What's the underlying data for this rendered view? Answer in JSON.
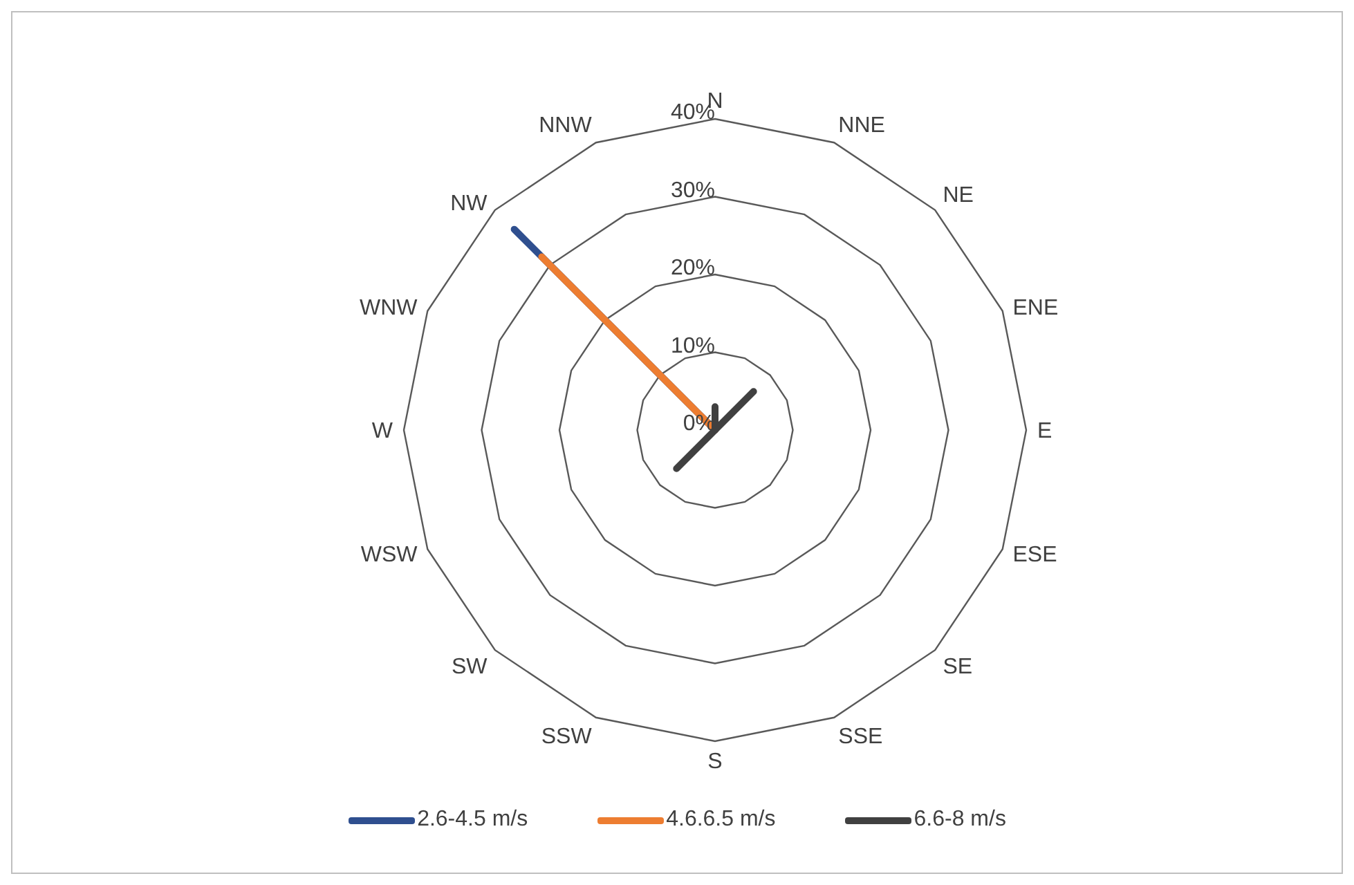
{
  "chart_data": {
    "type": "radar",
    "categories": [
      "N",
      "NNE",
      "NE",
      "ENE",
      "E",
      "ESE",
      "SE",
      "SSE",
      "S",
      "SSW",
      "SW",
      "WSW",
      "W",
      "WNW",
      "NW",
      "NNW"
    ],
    "series": [
      {
        "name": "2.6-4.5 m/s",
        "color": "#2f4f8f",
        "values": [
          0,
          0,
          0,
          0,
          0,
          0,
          0,
          0,
          0,
          0,
          0,
          0,
          0,
          0,
          36.5,
          0
        ]
      },
      {
        "name": "4.6.6.5 m/s",
        "color": "#ed7d31",
        "values": [
          0,
          0,
          0,
          0,
          0,
          0,
          0,
          0,
          0,
          0,
          0,
          0,
          0,
          0,
          31.5,
          0
        ]
      },
      {
        "name": "6.6-8 m/s",
        "color": "#404040",
        "values": [
          3,
          0,
          7,
          0,
          0,
          0,
          0,
          0,
          0,
          0,
          7,
          0,
          0,
          0,
          0,
          0
        ]
      }
    ],
    "ylim": [
      0,
      40
    ],
    "yticks": [
      {
        "value": 0,
        "label": "0%"
      },
      {
        "value": 10,
        "label": "10%"
      },
      {
        "value": 20,
        "label": "20%"
      },
      {
        "value": 30,
        "label": "30%"
      },
      {
        "value": 40,
        "label": "40%"
      }
    ],
    "grid": true,
    "legend": "bottom"
  }
}
